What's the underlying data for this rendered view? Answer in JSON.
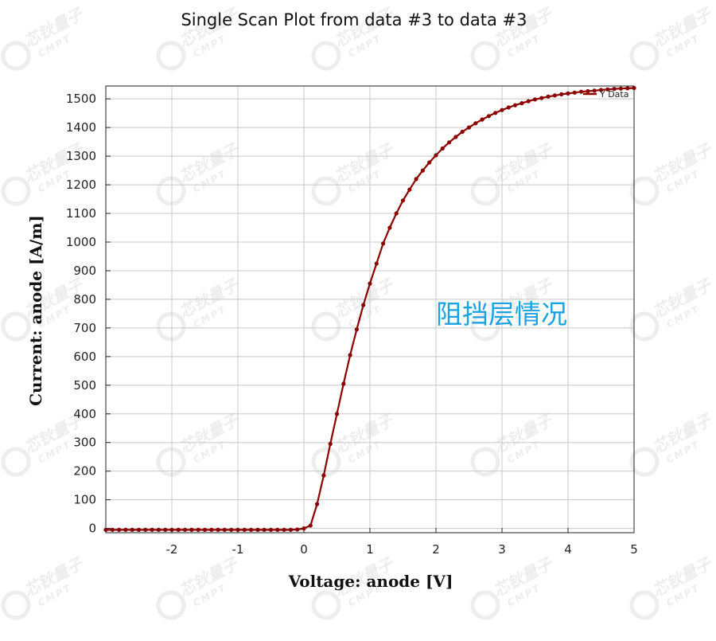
{
  "chart_data": {
    "type": "line",
    "title": "Single Scan Plot from data #3 to data #3",
    "xlabel": "Voltage: anode [V]",
    "ylabel": "Current: anode [A/m]",
    "xlim": [
      -3,
      5
    ],
    "ylim": [
      -15,
      1545
    ],
    "x_ticks": [
      -2,
      -1,
      0,
      1,
      2,
      3,
      4,
      5
    ],
    "y_ticks": [
      0,
      100,
      200,
      300,
      400,
      500,
      600,
      700,
      800,
      900,
      1000,
      1100,
      1200,
      1300,
      1400,
      1500
    ],
    "grid": true,
    "legend": {
      "position": "top-right",
      "entries": [
        "Y Data"
      ]
    },
    "annotation": {
      "text": "阻挡层情况",
      "color": "#1aa3e0"
    },
    "series": [
      {
        "name": "Y Data",
        "color": "#8b0000",
        "x": [
          -3.0,
          -2.9,
          -2.8,
          -2.7,
          -2.6,
          -2.5,
          -2.4,
          -2.3,
          -2.2,
          -2.1,
          -2.0,
          -1.9,
          -1.8,
          -1.7,
          -1.6,
          -1.5,
          -1.4,
          -1.3,
          -1.2,
          -1.1,
          -1.0,
          -0.9,
          -0.8,
          -0.7,
          -0.6,
          -0.5,
          -0.4,
          -0.3,
          -0.2,
          -0.1,
          0.0,
          0.1,
          0.2,
          0.3,
          0.4,
          0.5,
          0.6,
          0.7,
          0.8,
          0.9,
          1.0,
          1.1,
          1.2,
          1.3,
          1.4,
          1.5,
          1.6,
          1.7,
          1.8,
          1.9,
          2.0,
          2.1,
          2.2,
          2.3,
          2.4,
          2.5,
          2.6,
          2.7,
          2.8,
          2.9,
          3.0,
          3.1,
          3.2,
          3.3,
          3.4,
          3.5,
          3.6,
          3.7,
          3.8,
          3.9,
          4.0,
          4.1,
          4.2,
          4.3,
          4.4,
          4.5,
          4.6,
          4.7,
          4.8,
          4.9,
          5.0
        ],
        "y": [
          -5,
          -5,
          -5,
          -5,
          -5,
          -5,
          -5,
          -5,
          -5,
          -5,
          -5,
          -5,
          -5,
          -5,
          -5,
          -5,
          -5,
          -5,
          -5,
          -5,
          -5,
          -5,
          -5,
          -5,
          -5,
          -5,
          -5,
          -5,
          -5,
          -4,
          0,
          10,
          85,
          185,
          295,
          400,
          505,
          605,
          695,
          780,
          855,
          925,
          995,
          1050,
          1100,
          1145,
          1183,
          1220,
          1250,
          1278,
          1303,
          1327,
          1348,
          1367,
          1385,
          1400,
          1415,
          1428,
          1440,
          1451,
          1461,
          1470,
          1478,
          1485,
          1492,
          1498,
          1503,
          1508,
          1512,
          1516,
          1519,
          1522,
          1525,
          1527,
          1529,
          1531,
          1533,
          1535,
          1536,
          1537,
          1538
        ]
      }
    ]
  },
  "watermark": {
    "brand": "芯钬量子",
    "sub": "CMPT"
  }
}
